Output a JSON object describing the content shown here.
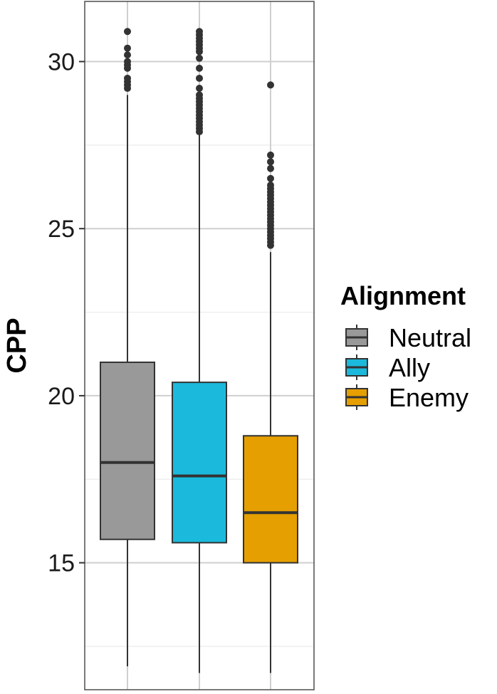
{
  "chart_data": {
    "type": "boxplot",
    "title": "",
    "xlabel": "",
    "ylabel": "CPP",
    "ylim": [
      11.2,
      31.8
    ],
    "yticks": [
      15,
      20,
      25,
      30
    ],
    "grid": true,
    "legend": {
      "title": "Alignment",
      "placement": "right"
    },
    "series": [
      {
        "name": "Neutral",
        "color": "#999999",
        "whisker_low": 11.9,
        "q1": 15.7,
        "median": 18.0,
        "q3": 21.0,
        "whisker_high": 29.0,
        "outliers": [
          29.2,
          29.3,
          29.4,
          29.5,
          29.8,
          29.9,
          30.0,
          30.2,
          30.4,
          30.9
        ]
      },
      {
        "name": "Ally",
        "color": "#1bbadc",
        "whisker_low": 11.7,
        "q1": 15.6,
        "median": 17.6,
        "q3": 20.4,
        "whisker_high": 27.8,
        "outliers": [
          27.9,
          28.0,
          28.1,
          28.2,
          28.3,
          28.4,
          28.5,
          28.6,
          28.7,
          28.8,
          28.9,
          29.0,
          29.2,
          29.5,
          29.8,
          30.1,
          30.3,
          30.4,
          30.5,
          30.6,
          30.7,
          30.8,
          30.9
        ]
      },
      {
        "name": "Enemy",
        "color": "#e69f00",
        "whisker_low": 11.7,
        "q1": 15.0,
        "median": 16.5,
        "q3": 18.8,
        "whisker_high": 24.3,
        "outliers": [
          24.5,
          24.6,
          24.7,
          24.8,
          24.9,
          25.0,
          25.1,
          25.2,
          25.3,
          25.4,
          25.5,
          25.6,
          25.7,
          25.8,
          25.9,
          26.0,
          26.1,
          26.2,
          26.3,
          26.5,
          26.8,
          27.0,
          27.2,
          29.3
        ]
      }
    ]
  }
}
